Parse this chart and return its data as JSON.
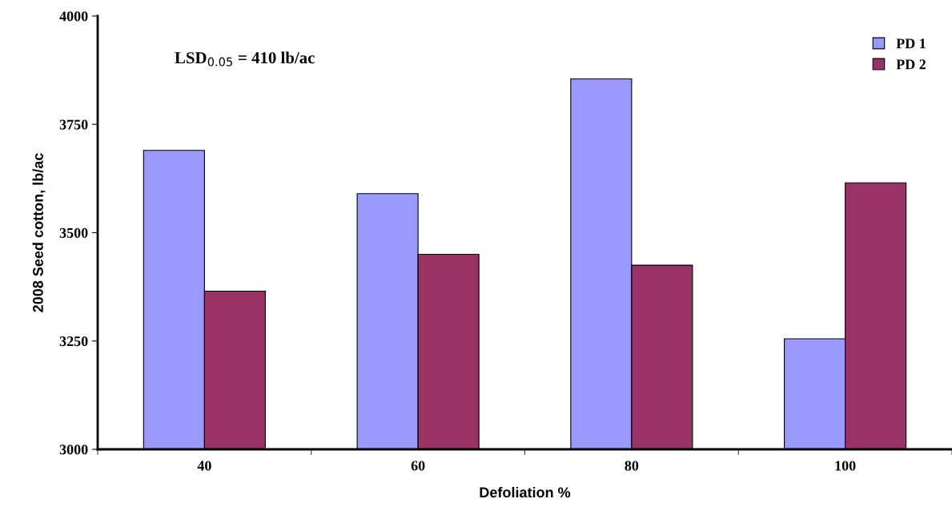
{
  "chart_data": {
    "type": "bar",
    "xlabel": "Defoliation %",
    "ylabel": "2008 Seed cotton, lb/ac",
    "categories": [
      "40",
      "60",
      "80",
      "100"
    ],
    "series": [
      {
        "name": "PD 1",
        "color": "#9999ff",
        "values": [
          3690,
          3590,
          3855,
          3255
        ]
      },
      {
        "name": "PD 2",
        "color": "#993366",
        "values": [
          3365,
          3450,
          3425,
          3615
        ]
      }
    ],
    "ylim": [
      3000,
      4000
    ],
    "yticks": [
      3000,
      3250,
      3500,
      3750,
      4000
    ],
    "annotations": [
      "LSD$_{0.05}$ = 410 lb/ac"
    ],
    "legend": "top right",
    "grid": false
  }
}
